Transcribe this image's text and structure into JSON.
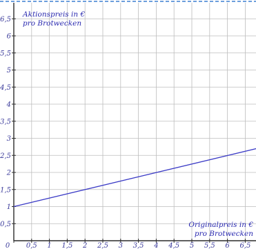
{
  "chart_data": {
    "type": "line",
    "title": "",
    "ylabel": [
      "Aktionspreis in €",
      "pro Brotwecken"
    ],
    "xlabel": [
      "Originalpreis in €",
      "pro Brotwecken"
    ],
    "xlim": [
      0,
      6.9
    ],
    "ylim": [
      0,
      6.7
    ],
    "x_ticks": [
      "0",
      "0,5",
      "1",
      "1,5",
      "2",
      "2,5",
      "3",
      "3,5",
      "4",
      "4,5",
      "5",
      "5,5",
      "6",
      "6,5"
    ],
    "y_ticks": [
      "0,5",
      "1",
      "1,5",
      "2",
      "2,5",
      "3",
      "3,5",
      "4",
      "4,5",
      "5",
      "5,5",
      "6",
      "6,5"
    ],
    "grid": true,
    "series": [
      {
        "points": [
          [
            0,
            1
          ],
          [
            6.9,
            2.72
          ]
        ],
        "color": "#3b3bc6"
      }
    ],
    "colors": {
      "grid": "#bdbdbd",
      "axis": "#2a2a2a",
      "line": "#3b3bc6",
      "text": "#2a2ab0",
      "border": "#3b7fd0"
    }
  }
}
